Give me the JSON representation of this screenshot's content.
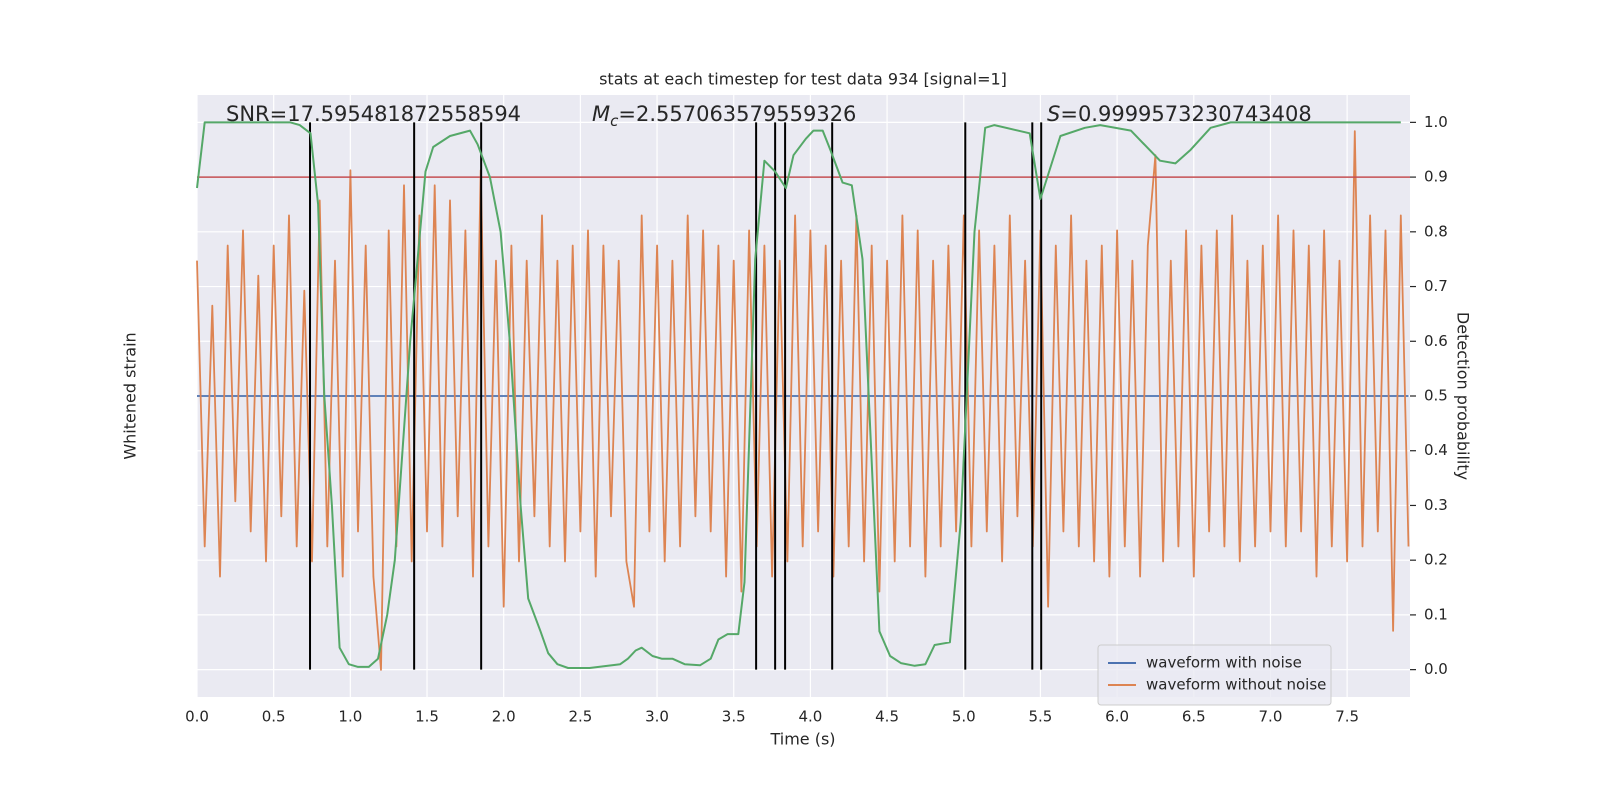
{
  "chart_data": {
    "type": "line",
    "title": "stats at each timestep for test data 934 [signal=1]",
    "xlabel": "Time (s)",
    "ylabel": "Whitened strain",
    "y2label": "Detection probability",
    "xlim": [
      0,
      7.91
    ],
    "xticks": [
      {
        "value": 0,
        "label": "0.0"
      },
      0.5,
      {
        "value": 1,
        "label": "1.0"
      },
      1.5,
      {
        "value": 2,
        "label": "2.0"
      },
      2.5,
      {
        "value": 3,
        "label": "3.0"
      },
      3.5,
      {
        "value": 4,
        "label": "4.0"
      },
      4.5,
      {
        "value": 5,
        "label": "5.0"
      },
      5.5,
      {
        "value": 6,
        "label": "6.0"
      },
      6.5,
      {
        "value": 7,
        "label": "7.0"
      },
      7.5
    ],
    "ylim": [
      -1,
      1
    ],
    "y2lim": [
      -0.05,
      1.05
    ],
    "y2ticks": [
      {
        "value": 0,
        "label": "0.0"
      },
      0.1,
      0.2,
      0.3,
      0.4,
      0.5,
      0.6,
      0.7,
      0.8,
      0.9,
      {
        "value": 1,
        "label": "1.0"
      }
    ],
    "grid": true,
    "legend": "lower right",
    "series": [
      {
        "name": "waveform with noise",
        "color": "#4c72b0",
        "x": [
          0,
          7.9
        ],
        "values": [
          0,
          0
        ]
      },
      {
        "name": "waveform without noise",
        "color": "#dd8452",
        "x": [
          0,
          0.05,
          0.1,
          0.15,
          0.2,
          0.25,
          0.3,
          0.35,
          0.4,
          0.45,
          0.5,
          0.55,
          0.6,
          0.65,
          0.7,
          0.75,
          0.8,
          0.85,
          0.9,
          0.95,
          1,
          1.05,
          1.1,
          1.15,
          1.2,
          1.25,
          1.3,
          1.35,
          1.4,
          1.45,
          1.5,
          1.55,
          1.6,
          1.65,
          1.7,
          1.75,
          1.8,
          1.85,
          1.9,
          1.95,
          2,
          2.05,
          2.1,
          2.15,
          2.2,
          2.25,
          2.3,
          2.35,
          2.4,
          2.45,
          2.5,
          2.55,
          2.6,
          2.65,
          2.7,
          2.75,
          2.8,
          2.85,
          2.9,
          2.95,
          3,
          3.05,
          3.1,
          3.15,
          3.2,
          3.25,
          3.3,
          3.35,
          3.4,
          3.45,
          3.5,
          3.55,
          3.6,
          3.65,
          3.7,
          3.75,
          3.8,
          3.85,
          3.9,
          3.95,
          4,
          4.05,
          4.1,
          4.15,
          4.2,
          4.25,
          4.3,
          4.35,
          4.4,
          4.45,
          4.5,
          4.55,
          4.6,
          4.65,
          4.7,
          4.75,
          4.8,
          4.85,
          4.9,
          4.95,
          5,
          5.05,
          5.1,
          5.15,
          5.2,
          5.25,
          5.3,
          5.35,
          5.4,
          5.45,
          5.5,
          5.55,
          5.6,
          5.65,
          5.7,
          5.75,
          5.8,
          5.85,
          5.9,
          5.95,
          6,
          6.05,
          6.1,
          6.15,
          6.2,
          6.25,
          6.3,
          6.35,
          6.4,
          6.45,
          6.5,
          6.55,
          6.6,
          6.65,
          6.7,
          6.75,
          6.8,
          6.85,
          6.9,
          6.95,
          7,
          7.05,
          7.1,
          7.15,
          7.2,
          7.25,
          7.3,
          7.35,
          7.4,
          7.45,
          7.5,
          7.55,
          7.6,
          7.65,
          7.7,
          7.75,
          7.8,
          7.85,
          7.9
        ],
        "values": [
          0.45,
          -0.5,
          0.3,
          -0.6,
          0.5,
          -0.35,
          0.55,
          -0.45,
          0.4,
          -0.55,
          0.5,
          -0.4,
          0.6,
          -0.5,
          0.35,
          -0.55,
          0.65,
          -0.5,
          0.45,
          -0.6,
          0.75,
          -0.45,
          0.5,
          -0.6,
          -0.91,
          0.55,
          -0.5,
          0.7,
          -0.55,
          0.6,
          -0.45,
          0.7,
          -0.5,
          0.65,
          -0.4,
          0.55,
          -0.6,
          0.75,
          -0.5,
          0.45,
          -0.7,
          0.5,
          -0.55,
          0.45,
          -0.4,
          0.6,
          -0.5,
          0.45,
          -0.55,
          0.5,
          -0.45,
          0.55,
          -0.6,
          0.5,
          -0.4,
          0.45,
          -0.55,
          -0.7,
          0.6,
          -0.45,
          0.5,
          -0.55,
          0.45,
          -0.5,
          0.6,
          -0.4,
          0.55,
          -0.45,
          0.5,
          -0.6,
          0.45,
          -0.65,
          0.55,
          -0.5,
          0.5,
          -0.6,
          0.45,
          -0.55,
          0.6,
          -0.5,
          0.55,
          -0.45,
          0.5,
          -0.6,
          0.45,
          -0.5,
          0.6,
          -0.55,
          0.5,
          -0.65,
          0.45,
          -0.55,
          0.6,
          -0.5,
          0.55,
          -0.6,
          0.45,
          -0.5,
          0.5,
          -0.45,
          0.6,
          -0.5,
          0.55,
          -0.45,
          0.5,
          -0.55,
          0.6,
          -0.4,
          0.45,
          -0.5,
          0.55,
          -0.7,
          0.5,
          -0.45,
          0.6,
          -0.5,
          0.45,
          -0.55,
          0.5,
          -0.6,
          0.55,
          -0.5,
          0.45,
          -0.6,
          0.5,
          0.8,
          -0.55,
          0.45,
          -0.5,
          0.55,
          -0.6,
          0.5,
          -0.45,
          0.55,
          -0.5,
          0.6,
          -0.55,
          0.45,
          -0.5,
          0.5,
          -0.45,
          0.6,
          -0.5,
          0.55,
          -0.45,
          0.5,
          -0.6,
          0.55,
          -0.5,
          0.45,
          -0.55,
          0.88,
          -0.5,
          0.6,
          -0.45,
          0.55,
          -0.78,
          0.6,
          -0.5
        ]
      },
      {
        "color": "#55a868",
        "axis": "y2",
        "x": [
          0,
          0.05,
          0.61,
          0.67,
          0.74,
          0.79,
          0.83,
          0.88,
          0.93,
          0.99,
          1.05,
          1.12,
          1.18,
          1.24,
          1.29,
          1.39,
          1.49,
          1.54,
          1.65,
          1.78,
          1.83,
          1.91,
          1.98,
          2.04,
          2.11,
          2.16,
          2.24,
          2.29,
          2.35,
          2.42,
          2.56,
          2.76,
          2.81,
          2.86,
          2.9,
          2.97,
          3.03,
          3.1,
          3.18,
          3.28,
          3.35,
          3.4,
          3.46,
          3.53,
          3.57,
          3.64,
          3.7,
          3.77,
          3.84,
          3.89,
          3.97,
          4.02,
          4.08,
          4.13,
          4.21,
          4.27,
          4.34,
          4.45,
          4.52,
          4.59,
          4.68,
          4.75,
          4.81,
          4.91,
          4.98,
          5.07,
          5.14,
          5.2,
          5.43,
          5.5,
          5.63,
          5.79,
          5.89,
          6.09,
          6.28,
          6.38,
          6.48,
          6.61,
          6.74,
          7.85
        ],
        "values": [
          0.88,
          1.0,
          1.0,
          0.995,
          0.98,
          0.85,
          0.5,
          0.3,
          0.04,
          0.01,
          0.005,
          0.005,
          0.02,
          0.1,
          0.2,
          0.6,
          0.91,
          0.955,
          0.975,
          0.985,
          0.96,
          0.9,
          0.8,
          0.6,
          0.3,
          0.13,
          0.07,
          0.03,
          0.01,
          0.003,
          0.003,
          0.01,
          0.02,
          0.035,
          0.04,
          0.025,
          0.02,
          0.02,
          0.01,
          0.008,
          0.02,
          0.055,
          0.065,
          0.065,
          0.16,
          0.75,
          0.93,
          0.91,
          0.88,
          0.94,
          0.97,
          0.985,
          0.985,
          0.95,
          0.89,
          0.885,
          0.75,
          0.07,
          0.025,
          0.012,
          0.007,
          0.01,
          0.045,
          0.05,
          0.27,
          0.8,
          0.99,
          0.995,
          0.98,
          0.86,
          0.975,
          0.99,
          0.995,
          0.985,
          0.93,
          0.925,
          0.95,
          0.99,
          1.0,
          1.0
        ]
      }
    ],
    "threshold": {
      "value": 0.9,
      "color": "#c44e52",
      "axis": "y2"
    },
    "vlines": {
      "color": "#000000",
      "x": [
        0.737,
        1.416,
        1.853,
        3.646,
        3.77,
        3.835,
        4.142,
        5.01,
        5.447,
        5.505
      ]
    },
    "annotations": [
      {
        "text": "SNR=17.595481872558594"
      },
      {
        "symbol": "M",
        "subscript": "c",
        "text": "=2.557063579559326"
      },
      {
        "symbol": "S",
        "text": "=0.9999573230743408"
      }
    ]
  }
}
